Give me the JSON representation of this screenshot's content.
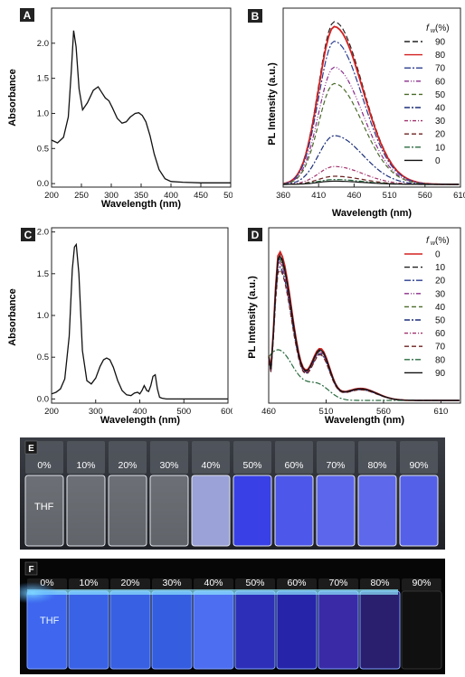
{
  "panels": {
    "A": {
      "letter": "A",
      "ylabel": "Absorbance",
      "xlabel": "Wavelength (nm)",
      "xticks": [
        "200",
        "250",
        "300",
        "350",
        "400",
        "450",
        "500"
      ],
      "yticks": [
        "0.0",
        "0.5",
        "1.0",
        "1.5",
        "2.0"
      ]
    },
    "B": {
      "letter": "B",
      "ylabel": "PL Intensity (a.u.)",
      "xlabel": "Wavelength (nm)",
      "xticks": [
        "360",
        "410",
        "460",
        "510",
        "560",
        "610"
      ],
      "legend_title": "f",
      "legend_sub": "w",
      "legend_unit": " (%)",
      "legend": [
        "90",
        "80",
        "70",
        "60",
        "50",
        "40",
        "30",
        "20",
        "10",
        "0"
      ]
    },
    "C": {
      "letter": "C",
      "ylabel": "Absorbance",
      "xlabel": "Wavelength (nm)",
      "xticks": [
        "200",
        "300",
        "400",
        "500",
        "600"
      ],
      "yticks": [
        "0.0",
        "0.5",
        "1.0",
        "1.5",
        "2.0"
      ]
    },
    "D": {
      "letter": "D",
      "ylabel": "PL Intensity (a.u.)",
      "xlabel": "Wavelength (nm)",
      "xticks": [
        "460",
        "510",
        "560",
        "610"
      ],
      "legend_title": "f",
      "legend_sub": "w",
      "legend_unit": " (%)",
      "legend": [
        "0",
        "10",
        "20",
        "30",
        "40",
        "50",
        "60",
        "70",
        "80",
        "90"
      ]
    }
  },
  "photos": {
    "E": {
      "letter": "E",
      "solvent": "THF",
      "fractions": [
        "0%",
        "10%",
        "20%",
        "30%",
        "40%",
        "50%",
        "60%",
        "70%",
        "80%",
        "90%"
      ]
    },
    "F": {
      "letter": "F",
      "solvent": "THF",
      "fractions": [
        "0%",
        "10%",
        "20%",
        "30%",
        "40%",
        "50%",
        "60%",
        "70%",
        "80%",
        "90%"
      ]
    }
  },
  "chart_data": [
    {
      "type": "line",
      "panel": "A",
      "xlabel": "Wavelength (nm)",
      "ylabel": "Absorbance",
      "xlim": [
        200,
        500
      ],
      "ylim": [
        -0.05,
        2.5
      ],
      "series": [
        {
          "x": [
            200,
            210,
            220,
            228,
            233,
            237,
            241,
            246,
            252,
            260,
            270,
            278,
            284,
            290,
            296,
            302,
            310,
            318,
            325,
            332,
            340,
            346,
            352,
            358,
            365,
            372,
            380,
            390,
            400,
            420,
            450,
            500
          ],
          "y": [
            0.62,
            0.58,
            0.66,
            0.95,
            1.6,
            2.18,
            1.95,
            1.35,
            1.05,
            1.15,
            1.33,
            1.38,
            1.3,
            1.22,
            1.18,
            1.08,
            0.93,
            0.86,
            0.88,
            0.95,
            1.0,
            1.01,
            0.97,
            0.88,
            0.68,
            0.42,
            0.2,
            0.07,
            0.03,
            0.02,
            0.01,
            0.01
          ]
        }
      ]
    },
    {
      "type": "line",
      "panel": "B",
      "xlabel": "Wavelength (nm)",
      "ylabel": "PL Intensity (a.u.)",
      "xlim": [
        360,
        610
      ],
      "series": [
        {
          "name": "90",
          "peak": 1.0
        },
        {
          "name": "80",
          "peak": 0.97
        },
        {
          "name": "70",
          "peak": 0.88
        },
        {
          "name": "60",
          "peak": 0.72
        },
        {
          "name": "50",
          "peak": 0.62
        },
        {
          "name": "40",
          "peak": 0.3
        },
        {
          "name": "30",
          "peak": 0.11
        },
        {
          "name": "20",
          "peak": 0.05
        },
        {
          "name": "10",
          "peak": 0.03
        },
        {
          "name": "0",
          "peak": 0.02
        }
      ]
    },
    {
      "type": "line",
      "panel": "C",
      "xlabel": "Wavelength (nm)",
      "ylabel": "Absorbance",
      "xlim": [
        200,
        600
      ],
      "ylim": [
        -0.05,
        2.05
      ],
      "series": [
        {
          "x": [
            200,
            210,
            220,
            230,
            240,
            247,
            252,
            256,
            262,
            270,
            280,
            290,
            300,
            310,
            318,
            325,
            332,
            340,
            350,
            360,
            370,
            380,
            388,
            395,
            400,
            405,
            410,
            416,
            420,
            425,
            430,
            435,
            440,
            445,
            450,
            460,
            500,
            600
          ],
          "y": [
            0.06,
            0.08,
            0.12,
            0.24,
            0.75,
            1.55,
            1.82,
            1.85,
            1.5,
            0.58,
            0.22,
            0.18,
            0.25,
            0.39,
            0.47,
            0.49,
            0.47,
            0.38,
            0.22,
            0.1,
            0.05,
            0.04,
            0.07,
            0.08,
            0.06,
            0.1,
            0.16,
            0.1,
            0.09,
            0.16,
            0.27,
            0.29,
            0.12,
            0.02,
            0.01,
            0.0,
            0.0,
            0.0
          ]
        }
      ]
    },
    {
      "type": "line",
      "panel": "D",
      "xlabel": "Wavelength (nm)",
      "ylabel": "PL Intensity (a.u.)",
      "xlim": [
        460,
        610
      ],
      "series": [
        {
          "name": "0",
          "peak": 1.0
        },
        {
          "name": "10",
          "peak": 0.98
        },
        {
          "name": "20",
          "peak": 0.96
        },
        {
          "name": "30",
          "peak": 0.94
        },
        {
          "name": "40",
          "peak": 0.95
        },
        {
          "name": "50",
          "peak": 0.9
        },
        {
          "name": "60",
          "peak": 0.93
        },
        {
          "name": "70",
          "peak": 0.88
        },
        {
          "name": "80",
          "peak": 0.34
        },
        {
          "name": "90",
          "peak": 0.97
        }
      ]
    }
  ]
}
